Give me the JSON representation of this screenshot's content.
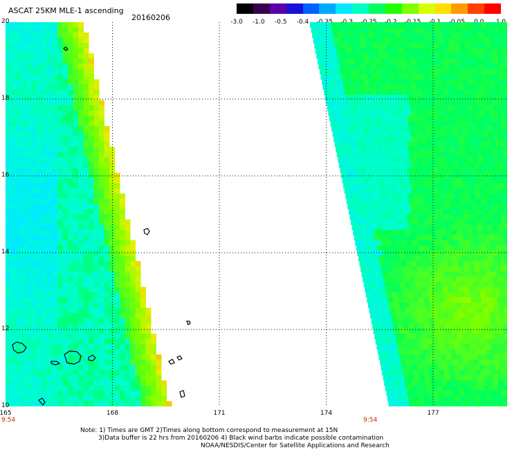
{
  "title": "ASCAT 25KM MLE-1 ascending",
  "date": "20160206",
  "colorbar": {
    "labels": [
      "-3.0",
      "-1.0",
      "-0.5",
      "-0.4",
      "-0.35",
      "-0.3",
      "-0.25",
      "-0.2",
      "-0.15",
      "-0.1",
      "-0.05",
      "0.0",
      "1.0"
    ],
    "colors": [
      "#000000",
      "#3a0050",
      "#5a00a8",
      "#1a10d8",
      "#0060ff",
      "#00a8ff",
      "#00e8ff",
      "#00ffc0",
      "#00ff60",
      "#20ff00",
      "#80ff00",
      "#d8ff00",
      "#ffe000",
      "#ff9a00",
      "#ff4000",
      "#ff0000"
    ]
  },
  "map": {
    "lon_range": [
      165,
      179
    ],
    "lat_range": [
      10,
      20
    ],
    "lon_ticks": [
      "165",
      "168",
      "171",
      "174",
      "177"
    ],
    "lat_ticks": [
      "20",
      "18",
      "16",
      "14",
      "12",
      "10"
    ],
    "time_labels": [
      "9:54",
      "9:54"
    ]
  },
  "notes": [
    "Note: 1) Times are GMT 2)Times along bottom correspond to measurement at 15N",
    "3)Data buffer is 22 hrs from 20160206 4) Black wind barbs indicate possible contamination",
    "NOAA/NESDIS/Center for Satellite Applications and Research"
  ]
}
